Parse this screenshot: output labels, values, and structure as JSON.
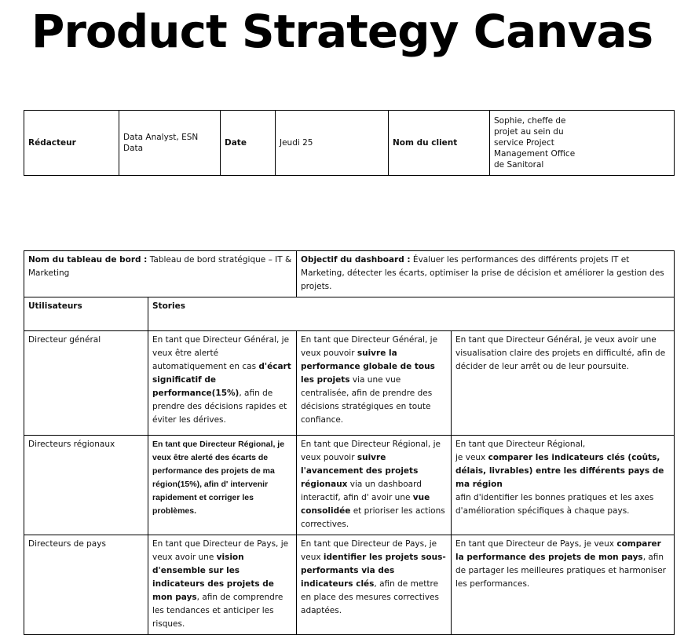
{
  "title": "Product Strategy Canvas",
  "meta": {
    "author_label": "Rédacteur",
    "author_value": "Data Analyst, ESN Data",
    "date_label": "Date",
    "date_value": "Jeudi 25",
    "client_label": "Nom du client",
    "client_value": "Sophie, cheffe de projet au sein du service Project Management Office de Sanitoral"
  },
  "dashboard": {
    "name_label": "Nom du tableau de bord :",
    "name_value": " Tableau de bord stratégique – IT & Marketing",
    "objective_label": "Objectif du dashboard :",
    "objective_value": " Évaluer les performances des différents projets IT et Marketing, détecter les écarts, optimiser la prise de décision et améliorer la gestion des projets."
  },
  "headers": {
    "users": "Utilisateurs",
    "stories": "Stories"
  },
  "rows": [
    {
      "user": "Directeur général",
      "s1": [
        "En tant que Directeur Général, je veux être alerté automatiquement en cas ",
        "d'écart significatif de performance(15%)",
        ", afin de prendre des décisions rapides et éviter les dérives."
      ],
      "s2": [
        "En tant que Directeur Général, je veux pouvoir ",
        "suivre la performance globale de tous les projets",
        " via une vue centralisée, afin de prendre des décisions stratégiques en toute confiance."
      ],
      "s3": [
        "En tant que Directeur Général, je veux avoir une visualisation claire des projets en difficulté, afin de décider de leur arrêt ou de leur poursuite."
      ]
    },
    {
      "user": "Directeurs régionaux",
      "s1": [
        "En tant que Directeur Régional, je veux être alerté des écarts de performance des projets de ma région(15%), afin d' intervenir rapidement et corriger les problèmes."
      ],
      "s2": [
        "En tant que Directeur Régional, je veux pouvoir ",
        "suivre l'avancement des projets régionaux",
        " via un dashboard interactif, afin d' avoir une ",
        "vue consolidée",
        " et prioriser les actions correctives."
      ],
      "s3": [
        "En tant que Directeur Régional,",
        "je veux ",
        "comparer les indicateurs clés (coûts, délais, livrables) entre les différents pays de ma région",
        "afin d'identifier les bonnes pratiques et les axes d'amélioration spécifiques à chaque pays."
      ]
    },
    {
      "user": "Directeurs de pays",
      "s1": [
        "En tant que Directeur de Pays, je veux avoir une ",
        "vision d'ensemble sur les indicateurs des projets de mon pays",
        ", afin de comprendre les tendances et anticiper les risques."
      ],
      "s2": [
        "En tant que Directeur de Pays, je veux ",
        "identifier les projets sous-performants via des indicateurs clés",
        ", afin de mettre en place des mesures correctives adaptées."
      ],
      "s3": [
        "En tant que Directeur de Pays, je veux ",
        "comparer la performance des projets de mon pays",
        ", afin de partager les meilleures pratiques et harmoniser les performances."
      ]
    }
  ]
}
